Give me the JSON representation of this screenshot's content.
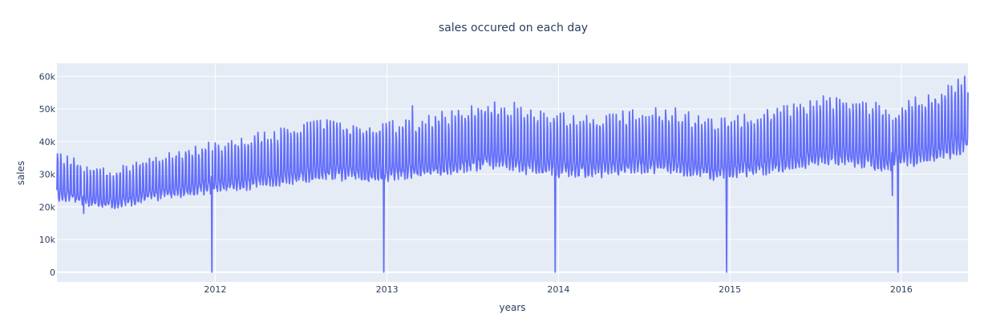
{
  "chart_data": {
    "type": "line",
    "title": "sales occured on each day",
    "xlabel": "years",
    "ylabel": "sales",
    "xlim": [
      "2011-01-29",
      "2016-05-22"
    ],
    "ylim": [
      -3000,
      64000
    ],
    "x_ticks": [
      "2012",
      "2013",
      "2014",
      "2015",
      "2016"
    ],
    "y_ticks": [
      {
        "value": 0,
        "label": "0"
      },
      {
        "value": 10000,
        "label": "10k"
      },
      {
        "value": 20000,
        "label": "20k"
      },
      {
        "value": 30000,
        "label": "30k"
      },
      {
        "value": 40000,
        "label": "40k"
      },
      {
        "value": 50000,
        "label": "50k"
      },
      {
        "value": 60000,
        "label": "60k"
      }
    ],
    "grid": true,
    "line_color": "#636efa",
    "plot_background": "#e5ecf6",
    "series": [
      {
        "trend": [
          {
            "date": "2011-01-29",
            "value": 27000
          },
          {
            "date": "2011-04-15",
            "value": 24500
          },
          {
            "date": "2011-06-01",
            "value": 23500
          },
          {
            "date": "2011-08-15",
            "value": 26500
          },
          {
            "date": "2011-11-01",
            "value": 28500
          },
          {
            "date": "2012-02-15",
            "value": 30500
          },
          {
            "date": "2012-05-15",
            "value": 32500
          },
          {
            "date": "2012-08-15",
            "value": 34500
          },
          {
            "date": "2012-12-01",
            "value": 34000
          },
          {
            "date": "2013-03-15",
            "value": 35000
          },
          {
            "date": "2013-08-15",
            "value": 39000
          },
          {
            "date": "2013-12-01",
            "value": 36000
          },
          {
            "date": "2014-03-15",
            "value": 35500
          },
          {
            "date": "2014-08-15",
            "value": 37500
          },
          {
            "date": "2014-12-01",
            "value": 34500
          },
          {
            "date": "2015-03-15",
            "value": 36500
          },
          {
            "date": "2015-08-15",
            "value": 40500
          },
          {
            "date": "2015-12-01",
            "value": 37500
          },
          {
            "date": "2016-03-15",
            "value": 41500
          },
          {
            "date": "2016-05-22",
            "value": 44500
          }
        ],
        "weekly_amplitude_pct": 14,
        "christmas_zero_dates": [
          "2011-12-25",
          "2012-12-25",
          "2013-12-25",
          "2014-12-25",
          "2015-12-25"
        ],
        "notable_points": [
          {
            "date": "2011-03-27",
            "value": 18000
          },
          {
            "date": "2012-06-17",
            "value": 43000
          },
          {
            "date": "2013-02-24",
            "value": 51000
          },
          {
            "date": "2013-09-29",
            "value": 52000
          },
          {
            "date": "2015-07-19",
            "value": 54000
          },
          {
            "date": "2015-12-13",
            "value": 23500
          },
          {
            "date": "2016-04-17",
            "value": 57000
          },
          {
            "date": "2016-05-15",
            "value": 60000
          }
        ]
      }
    ]
  }
}
